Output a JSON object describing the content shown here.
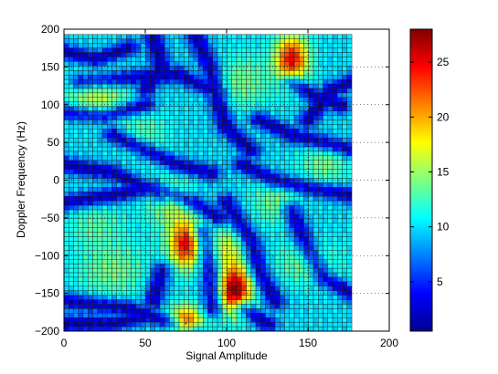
{
  "chart_data": {
    "type": "heatmap",
    "xlabel": "Signal Amplitude",
    "ylabel": "Doppler Frequency (Hz)",
    "xlim": [
      0,
      200
    ],
    "ylim": [
      -200,
      200
    ],
    "xticks": [
      0,
      50,
      100,
      150,
      200
    ],
    "yticks": [
      -200,
      -150,
      -100,
      -50,
      0,
      50,
      100,
      150,
      200
    ],
    "x_tick_labels": [
      "0",
      "50",
      "100",
      "150",
      "200"
    ],
    "y_tick_labels": [
      "−200",
      "−150",
      "−100",
      "−50",
      "0",
      "50",
      "100",
      "150",
      "200"
    ],
    "data_extent": {
      "x": [
        0,
        177
      ],
      "y": [
        -200,
        193
      ]
    },
    "grid_cells": {
      "cols": 60,
      "rows": 66
    },
    "grid": "dotted",
    "colormap": "jet",
    "colorbar": {
      "range": [
        0.5,
        28
      ],
      "ticks": [
        5,
        10,
        15,
        20,
        25
      ],
      "tick_labels": [
        "5",
        "10",
        "15",
        "20",
        "25"
      ],
      "placement": "right"
    },
    "hotspots": [
      {
        "x": 140,
        "y": 160,
        "value": 25
      },
      {
        "x": 75,
        "y": -85,
        "value": 25
      },
      {
        "x": 105,
        "y": -145,
        "value": 28
      },
      {
        "x": 75,
        "y": -190,
        "value": 24
      }
    ],
    "background_level": 10
  }
}
